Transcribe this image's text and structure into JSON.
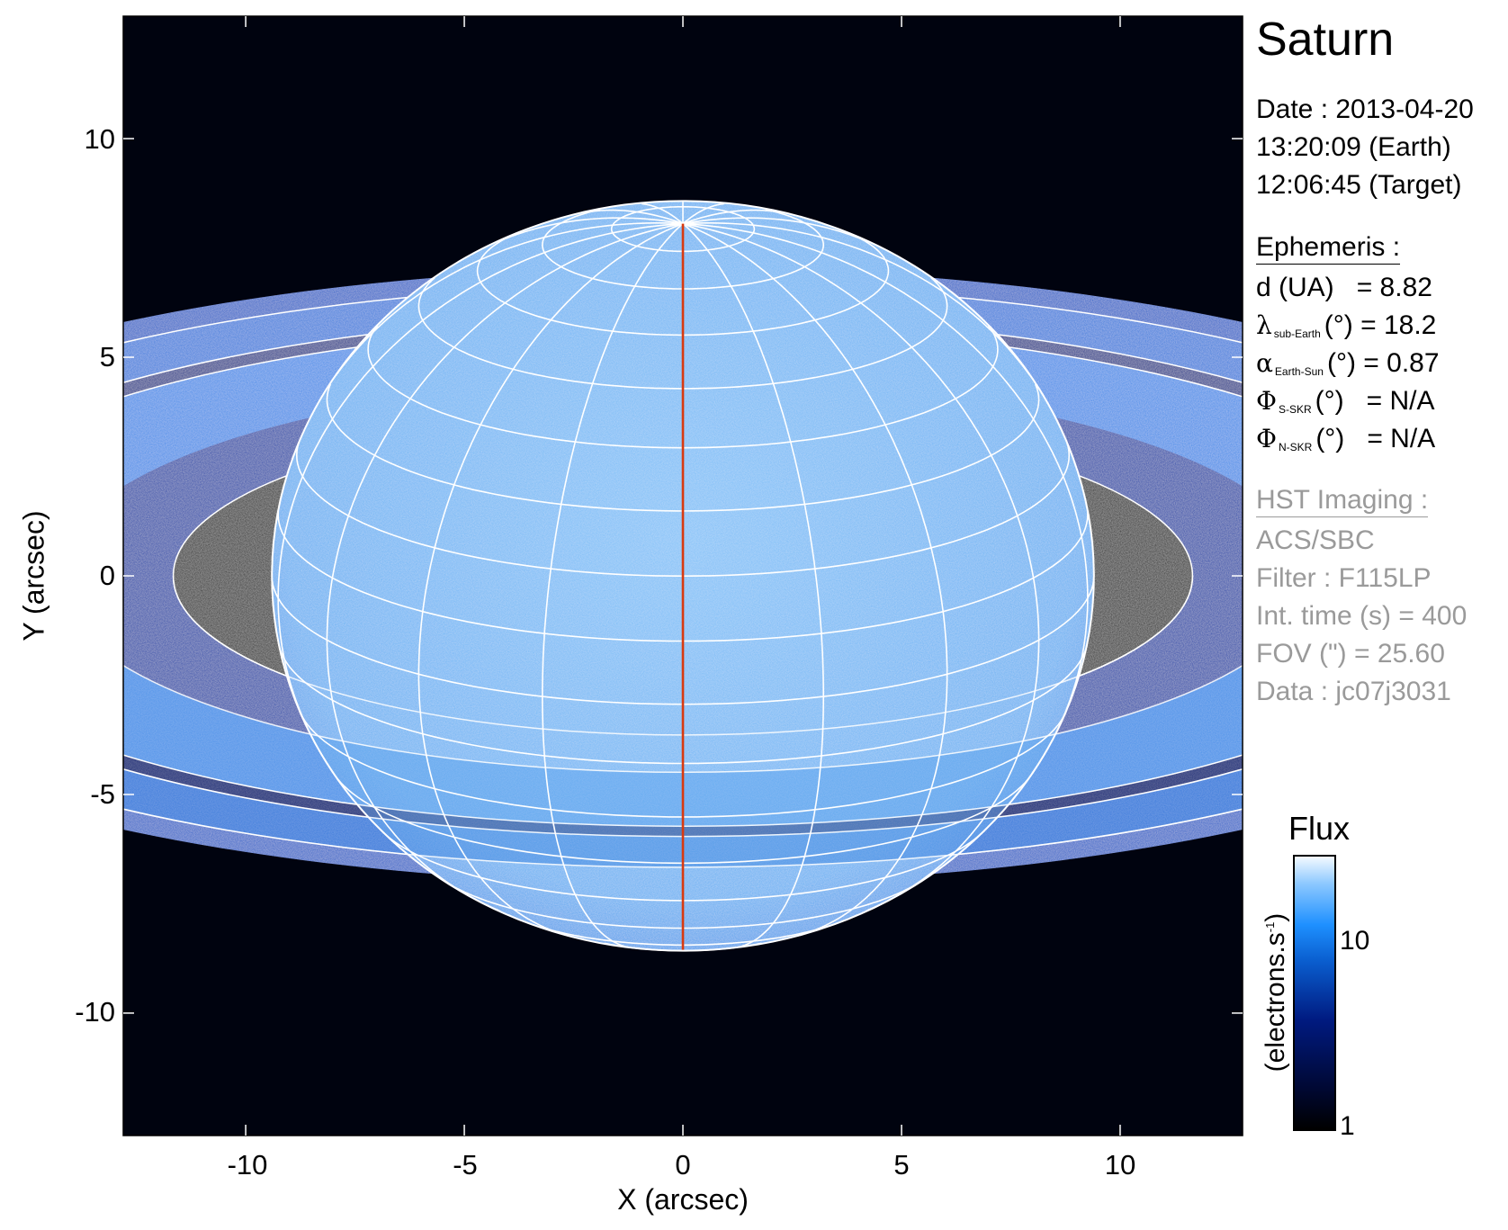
{
  "title": "Saturn",
  "date": {
    "line1": "Date : 2013-04-20",
    "line2": "13:20:09 (Earth)",
    "line3": "12:06:45 (Target)"
  },
  "ephemeris": {
    "heading": "Ephemeris :",
    "d_label": "d (UA)",
    "d_value": "= 8.82",
    "lambda_sym": "λ",
    "lambda_sub": "sub-Earth",
    "lambda_unit": "(°)",
    "lambda_value": "= 18.2",
    "alpha_sym": "α",
    "alpha_sub": "Earth-Sun",
    "alpha_unit": "(°)",
    "alpha_value": "= 0.87",
    "phi_sym": "Φ",
    "phi_s_sub": "S-SKR",
    "phi_s_unit": "(°)",
    "phi_s_value": "= N/A",
    "phi_n_sub": "N-SKR",
    "phi_n_unit": "(°)",
    "phi_n_value": "= N/A"
  },
  "imaging": {
    "heading": "HST Imaging :",
    "instrument": "ACS/SBC",
    "filter": "Filter : F115LP",
    "int_time": "Int. time (s) = 400",
    "fov": "FOV (\") = 25.60",
    "data": "Data : jc07j3031"
  },
  "chart_data": {
    "type": "image",
    "xlabel": "X (arcsec)",
    "ylabel": "Y (arcsec)",
    "xlim": [
      -12.8,
      12.8
    ],
    "ylim": [
      -12.8,
      12.8
    ],
    "xticks": [
      "-10",
      "-5",
      "0",
      "5",
      "10"
    ],
    "yticks": [
      "10",
      "5",
      "0",
      "-5",
      "-10"
    ],
    "xtick_values": [
      -10,
      -5,
      0,
      5,
      10
    ],
    "ytick_values": [
      10,
      5,
      0,
      -5,
      -10
    ],
    "planet": {
      "equatorial_radius_arcsec": 9.4,
      "sub_earth_latitude_deg": 18.2,
      "graticule_lat_step_deg": 10,
      "graticule_lon_step_deg": 20,
      "central_meridian_color": "#d83a10",
      "graticule_color": "#ffffff"
    },
    "colorbar": {
      "title": "Flux",
      "label": "(electrons.s",
      "label_sup": "-1",
      "label_close": ")",
      "scale": "log",
      "range": [
        1,
        30
      ],
      "ticks": [
        "10",
        "1"
      ],
      "colormap": [
        "#000000",
        "#001a80",
        "#1e90ff",
        "#f4faff"
      ]
    }
  }
}
